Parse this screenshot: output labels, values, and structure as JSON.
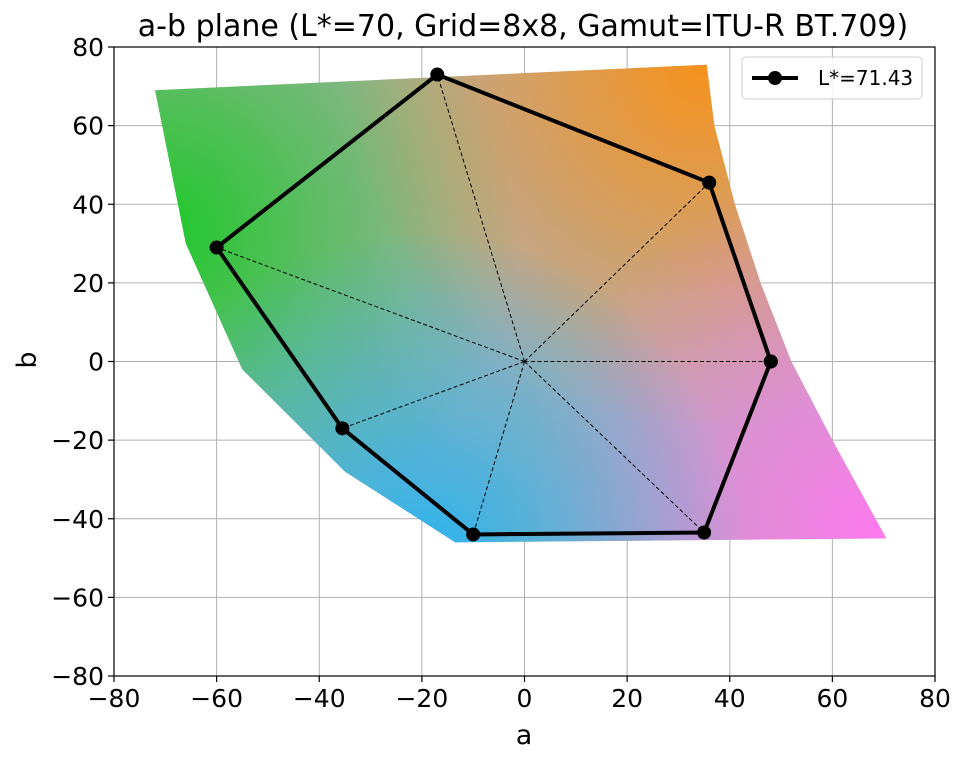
{
  "chart_data": {
    "type": "line",
    "title": "a-b plane (L*=70, Grid=8x8, Gamut=ITU-R BT.709)",
    "xlabel": "a",
    "ylabel": "b",
    "xlim": [
      -80,
      80
    ],
    "ylim": [
      -80,
      80
    ],
    "xticks": [
      -80,
      -60,
      -40,
      -20,
      0,
      20,
      40,
      60,
      80
    ],
    "yticks": [
      -80,
      -60,
      -40,
      -20,
      0,
      20,
      40,
      60,
      80
    ],
    "xtick_labels": [
      "−80",
      "−60",
      "−40",
      "−20",
      "0",
      "20",
      "40",
      "60",
      "80"
    ],
    "ytick_labels": [
      "−80",
      "−60",
      "−40",
      "−20",
      "0",
      "20",
      "40",
      "60",
      "80"
    ],
    "grid": true,
    "legend_position": "top-right",
    "series": [
      {
        "name": "L*=71.43",
        "color": "#000000",
        "marker": "circle",
        "x": [
          48,
          36,
          -17,
          -60,
          -35.5,
          -10,
          35,
          48
        ],
        "y": [
          0,
          45.5,
          73,
          29,
          -17,
          -44,
          -43.5,
          0
        ]
      }
    ],
    "center_rays": {
      "style": "dashed",
      "color": "#000000",
      "origin": [
        0,
        0
      ],
      "targets_x": [
        48,
        36,
        -17,
        -60,
        -35.5,
        -10,
        35
      ],
      "targets_y": [
        0,
        45.5,
        73,
        29,
        -17,
        -44,
        -43.5
      ]
    },
    "gamut_region": {
      "boundary_a": [
        -72,
        35.5,
        37,
        41,
        46,
        52,
        60,
        70.5,
        -13.5,
        -35,
        -55,
        -66,
        -72
      ],
      "boundary_b": [
        69,
        75.5,
        60,
        40,
        20,
        0,
        -20,
        -45,
        -46,
        -28,
        -2,
        30,
        69
      ],
      "corner_colors": {
        "green": "#1ec82a",
        "orange": "#f5921e",
        "pink": "#ff78f0",
        "cyan": "#28b4ee",
        "center": "#b0aeae"
      }
    }
  }
}
